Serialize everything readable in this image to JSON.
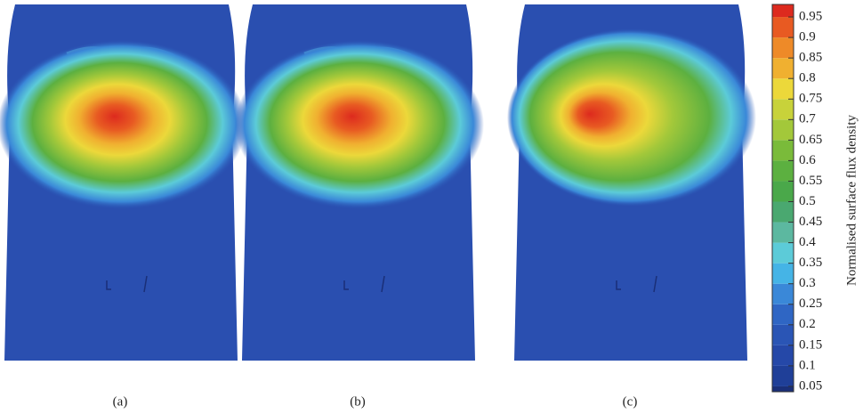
{
  "panels": [
    {
      "label": "(a)"
    },
    {
      "label": "(b)"
    },
    {
      "label": "(c)"
    }
  ],
  "colorbar": {
    "label": "Normalised surface flux density",
    "ticks": [
      {
        "value": 0.05,
        "label": "0.05"
      },
      {
        "value": 0.1,
        "label": "0.1"
      },
      {
        "value": 0.15,
        "label": "0.15"
      },
      {
        "value": 0.2,
        "label": "0.2"
      },
      {
        "value": 0.25,
        "label": "0.25"
      },
      {
        "value": 0.3,
        "label": "0.3"
      },
      {
        "value": 0.35,
        "label": "0.35"
      },
      {
        "value": 0.4,
        "label": "0.4"
      },
      {
        "value": 0.45,
        "label": "0.45"
      },
      {
        "value": 0.5,
        "label": "0.5"
      },
      {
        "value": 0.55,
        "label": "0.55"
      },
      {
        "value": 0.6,
        "label": "0.6"
      },
      {
        "value": 0.65,
        "label": "0.65"
      },
      {
        "value": 0.7,
        "label": "0.7"
      },
      {
        "value": 0.75,
        "label": "0.75"
      },
      {
        "value": 0.8,
        "label": "0.8"
      },
      {
        "value": 0.85,
        "label": "0.85"
      },
      {
        "value": 0.9,
        "label": "0.9"
      },
      {
        "value": 0.95,
        "label": "0.95"
      }
    ],
    "colors": [
      "#1a2f78",
      "#1f3f98",
      "#2548a8",
      "#2a55b5",
      "#2f66c4",
      "#3a88d8",
      "#45b4e6",
      "#5ccbd8",
      "#5cb8a0",
      "#4aa870",
      "#4aa84a",
      "#5cb040",
      "#7abb3a",
      "#a3c83a",
      "#c8d23a",
      "#ecd83a",
      "#f0b030",
      "#ee8a28",
      "#e85a22",
      "#dd2a1e"
    ]
  }
}
